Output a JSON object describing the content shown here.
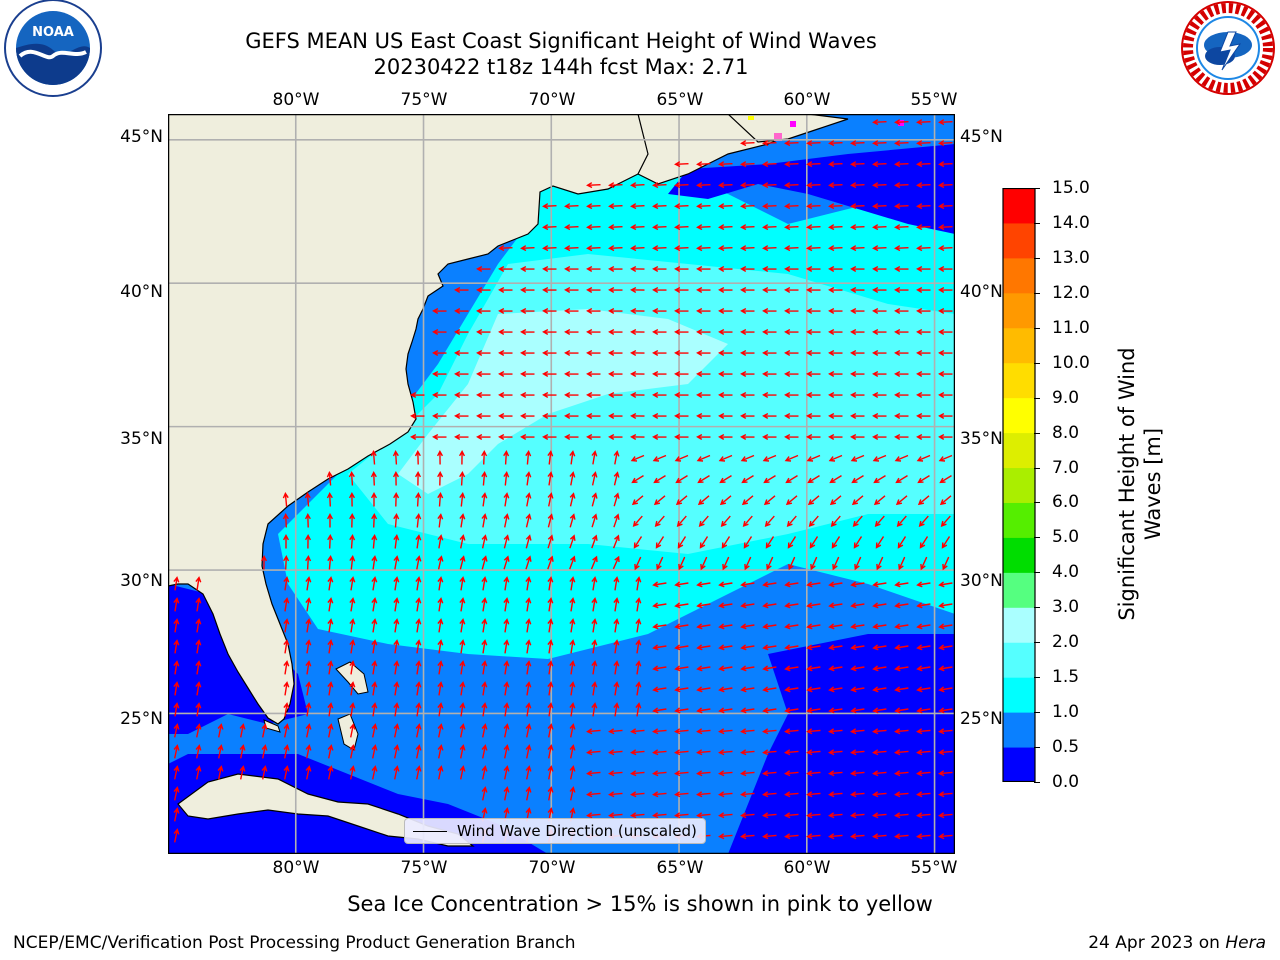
{
  "title": {
    "line1": "GEFS MEAN US East Coast Significant Height of Wind Waves",
    "line2": "20230422 t18z 144h fcst   Max: 2.71"
  },
  "logos": {
    "left": {
      "name": "NOAA",
      "ring_text": "NATIONAL OCEANIC AND ATMOSPHERIC ADMINISTRATION · U.S. DEPARTMENT OF COMMERCE"
    },
    "right": {
      "name": "NATIONAL WEATHER SERVICE"
    }
  },
  "map": {
    "lon_ticks": [
      "80°W",
      "75°W",
      "70°W",
      "65°W",
      "60°W",
      "55°W"
    ],
    "lat_ticks": [
      "45°N",
      "40°N",
      "35°N",
      "30°N",
      "25°N"
    ],
    "lon_range": [
      -85,
      -54.2
    ],
    "lat_range": [
      20.1,
      45.9
    ],
    "grid": true,
    "legend_label": "Wind Wave Direction (unscaled)",
    "colors": {
      "land": "#efeedd",
      "coast": "#000000",
      "arrows": "#ff0000",
      "grid": "#b0b0b0"
    }
  },
  "colorbar": {
    "label": "Significant Height of Wind Waves [m]",
    "ticks": [
      "0.0",
      "0.5",
      "1.0",
      "1.5",
      "2.0",
      "3.0",
      "4.0",
      "5.0",
      "6.0",
      "7.0",
      "8.0",
      "9.0",
      "10.0",
      "11.0",
      "12.0",
      "13.0",
      "14.0",
      "15.0"
    ],
    "colors": [
      "#0000ff",
      "#0a80ff",
      "#00ffff",
      "#55ffff",
      "#aaffff",
      "#55ff80",
      "#00dd00",
      "#55ee00",
      "#aaee00",
      "#ddee00",
      "#ffff00",
      "#ffdd00",
      "#ffbb00",
      "#ff9900",
      "#ff7700",
      "#ff4400",
      "#ff0000"
    ]
  },
  "note": "Sea Ice Concentration > 15% is shown in pink to yellow",
  "footer": {
    "left": "NCEP/EMC/Verification Post Processing Product Generation Branch",
    "date": "24 Apr 2023 on",
    "host": "Hera"
  }
}
